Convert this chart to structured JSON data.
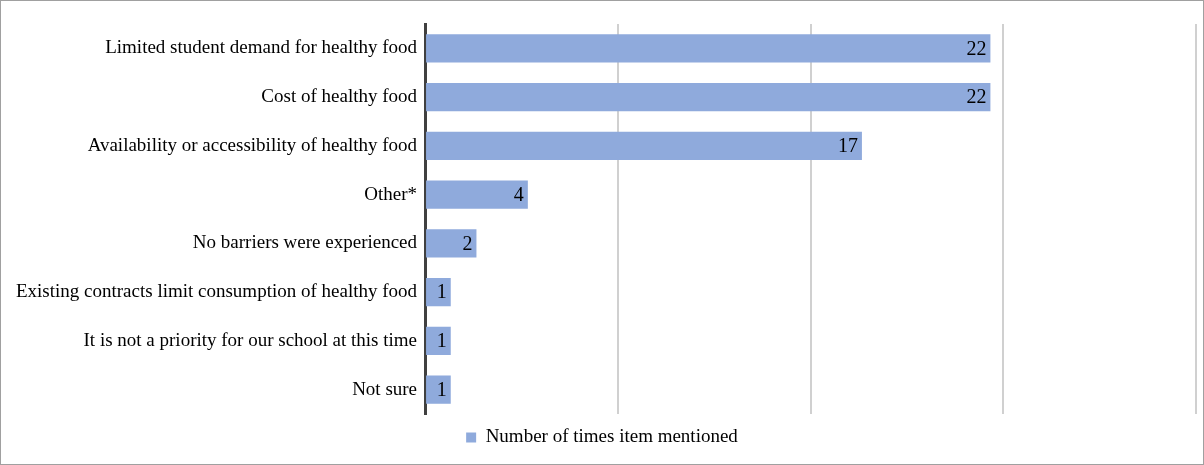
{
  "chart_data": {
    "type": "bar",
    "orientation": "horizontal",
    "categories": [
      "Limited student demand for healthy food",
      "Cost of healthy food",
      "Availability or accessibility of healthy food",
      "Other*",
      "No barriers were experienced",
      "Existing contracts limit consumption of healthy food",
      "It is not a priority for our school at this time",
      "Not sure"
    ],
    "series": [
      {
        "name": "Number of times item mentioned",
        "color": "#8faadc",
        "values": [
          22,
          22,
          17,
          4,
          2,
          1,
          1,
          1
        ]
      }
    ],
    "xlim": [
      0,
      30
    ],
    "xticks": [
      {
        "value": 0,
        "label": null
      },
      {
        "value": 7.5,
        "label": null
      },
      {
        "value": 15,
        "label": null
      },
      {
        "value": 22.5,
        "label": null
      },
      {
        "value": 30,
        "label": null
      }
    ],
    "tick_labels": "y",
    "grid": "x",
    "legend": "bottom",
    "data_labels": true
  }
}
